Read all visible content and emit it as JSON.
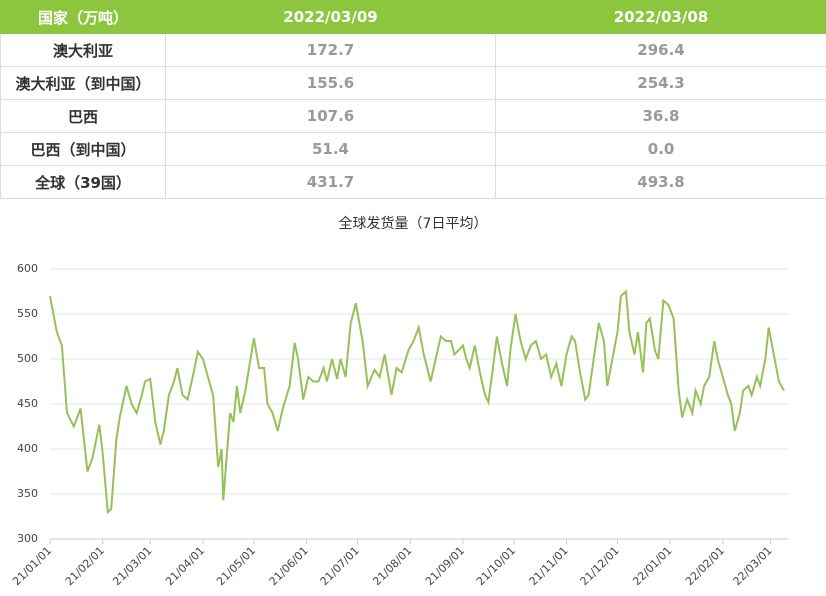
{
  "table": {
    "header": [
      "国家（万吨）",
      "2022/03/09",
      "2022/03/08"
    ],
    "rows": [
      [
        "澳大利亚",
        "172.7",
        "296.4"
      ],
      [
        "澳大利亚（到中国）",
        "155.6",
        "254.3"
      ],
      [
        "巴西",
        "107.6",
        "36.8"
      ],
      [
        "巴西（到中国）",
        "51.4",
        "0.0"
      ],
      [
        "全球（39国）",
        "431.7",
        "493.8"
      ]
    ]
  },
  "chart_data": {
    "type": "line",
    "title": "全球发货量（7日平均）",
    "color": "#96c157",
    "x": [
      "21/01/01",
      "21/01/05",
      "21/01/08",
      "21/01/11",
      "21/01/15",
      "21/01/19",
      "21/01/23",
      "21/01/26",
      "21/01/30",
      "21/02/01",
      "21/02/04",
      "21/02/06",
      "21/02/09",
      "21/02/11",
      "21/02/15",
      "21/02/18",
      "21/02/21",
      "21/02/24",
      "21/02/26",
      "21/03/01",
      "21/03/04",
      "21/03/07",
      "21/03/09",
      "21/03/12",
      "21/03/15",
      "21/03/17",
      "21/03/20",
      "21/03/23",
      "21/03/26",
      "21/03/29",
      "21/04/01",
      "21/04/04",
      "21/04/07",
      "21/04/10",
      "21/04/12",
      "21/04/13",
      "21/04/17",
      "21/04/19",
      "21/04/21",
      "21/04/23",
      "21/04/26",
      "21/04/29",
      "21/05/01",
      "21/05/04",
      "21/05/07",
      "21/05/09",
      "21/05/12",
      "21/05/15",
      "21/05/18",
      "21/05/22",
      "21/05/25",
      "21/05/27",
      "21/05/30",
      "21/06/02",
      "21/06/05",
      "21/06/08",
      "21/06/11",
      "21/06/13",
      "21/06/16",
      "21/06/19",
      "21/06/21",
      "21/06/24",
      "21/06/27",
      "21/06/30",
      "21/07/04",
      "21/07/07",
      "21/07/11",
      "21/07/14",
      "21/07/17",
      "21/07/21",
      "21/07/24",
      "21/07/27",
      "21/07/31",
      "21/08/03",
      "21/08/06",
      "21/08/09",
      "21/08/13",
      "21/08/16",
      "21/08/19",
      "21/08/22",
      "21/08/25",
      "21/08/27",
      "21/09/01",
      "21/09/03",
      "21/09/05",
      "21/09/08",
      "21/09/11",
      "21/09/14",
      "21/09/16",
      "21/09/19",
      "21/09/21",
      "21/09/24",
      "21/09/27",
      "21/09/29",
      "21/10/02",
      "21/10/05",
      "21/10/08",
      "21/10/11",
      "21/10/14",
      "21/10/17",
      "21/10/20",
      "21/10/23",
      "21/10/26",
      "21/10/29",
      "21/11/01",
      "21/11/04",
      "21/11/06",
      "21/11/09",
      "21/11/12",
      "21/11/14",
      "21/11/17",
      "21/11/20",
      "21/11/23",
      "21/11/25",
      "21/11/28",
      "21/12/01",
      "21/12/03",
      "21/12/06",
      "21/12/08",
      "21/12/11",
      "21/12/13",
      "21/12/16",
      "21/12/18",
      "21/12/20",
      "21/12/23",
      "21/12/25",
      "21/12/28",
      "21/12/31",
      "22/01/03",
      "22/01/06",
      "22/01/08",
      "22/01/11",
      "22/01/14",
      "22/01/16",
      "22/01/19",
      "22/01/21",
      "22/01/24",
      "22/01/27",
      "22/01/29",
      "22/02/01",
      "22/02/04",
      "22/02/06",
      "22/02/08",
      "22/02/11",
      "22/02/13",
      "22/02/16",
      "22/02/18",
      "22/02/21",
      "22/02/23",
      "22/02/26",
      "22/02/28",
      "22/03/03",
      "22/03/06",
      "22/03/09"
    ],
    "values": [
      570,
      530,
      515,
      440,
      425,
      445,
      375,
      390,
      427,
      395,
      330,
      333,
      410,
      435,
      470,
      450,
      440,
      460,
      475,
      478,
      430,
      405,
      420,
      460,
      475,
      490,
      460,
      455,
      480,
      508,
      500,
      480,
      460,
      380,
      400,
      343,
      440,
      430,
      470,
      440,
      465,
      500,
      523,
      490,
      490,
      450,
      440,
      420,
      445,
      470,
      518,
      500,
      455,
      480,
      475,
      475,
      490,
      475,
      500,
      478,
      500,
      480,
      540,
      562,
      520,
      470,
      488,
      480,
      505,
      460,
      490,
      485,
      510,
      520,
      535,
      505,
      475,
      500,
      525,
      520,
      520,
      505,
      515,
      500,
      490,
      515,
      485,
      460,
      452,
      495,
      525,
      495,
      470,
      510,
      550,
      520,
      500,
      515,
      520,
      500,
      505,
      480,
      495,
      470,
      505,
      525,
      520,
      485,
      455,
      460,
      500,
      540,
      520,
      470,
      500,
      530,
      570,
      575,
      530,
      505,
      530,
      485,
      540,
      545,
      510,
      500,
      565,
      560,
      545,
      465,
      435,
      455,
      440,
      465,
      450,
      470,
      480,
      520,
      500,
      480,
      460,
      450,
      420,
      440,
      465,
      470,
      460,
      480,
      470,
      500,
      535,
      505,
      475,
      465
    ],
    "xlim": [
      "21/01/01",
      "22/03/09"
    ],
    "xticks": [
      "21/01/01",
      "21/02/01",
      "21/03/01",
      "21/04/01",
      "21/05/01",
      "21/06/01",
      "21/07/01",
      "21/08/01",
      "21/09/01",
      "21/10/01",
      "21/11/01",
      "21/12/01",
      "22/01/01",
      "22/02/01",
      "22/03/01"
    ],
    "ylim": [
      300,
      600
    ],
    "yticks": [
      300,
      350,
      400,
      450,
      500,
      550,
      600
    ],
    "grid": true
  }
}
